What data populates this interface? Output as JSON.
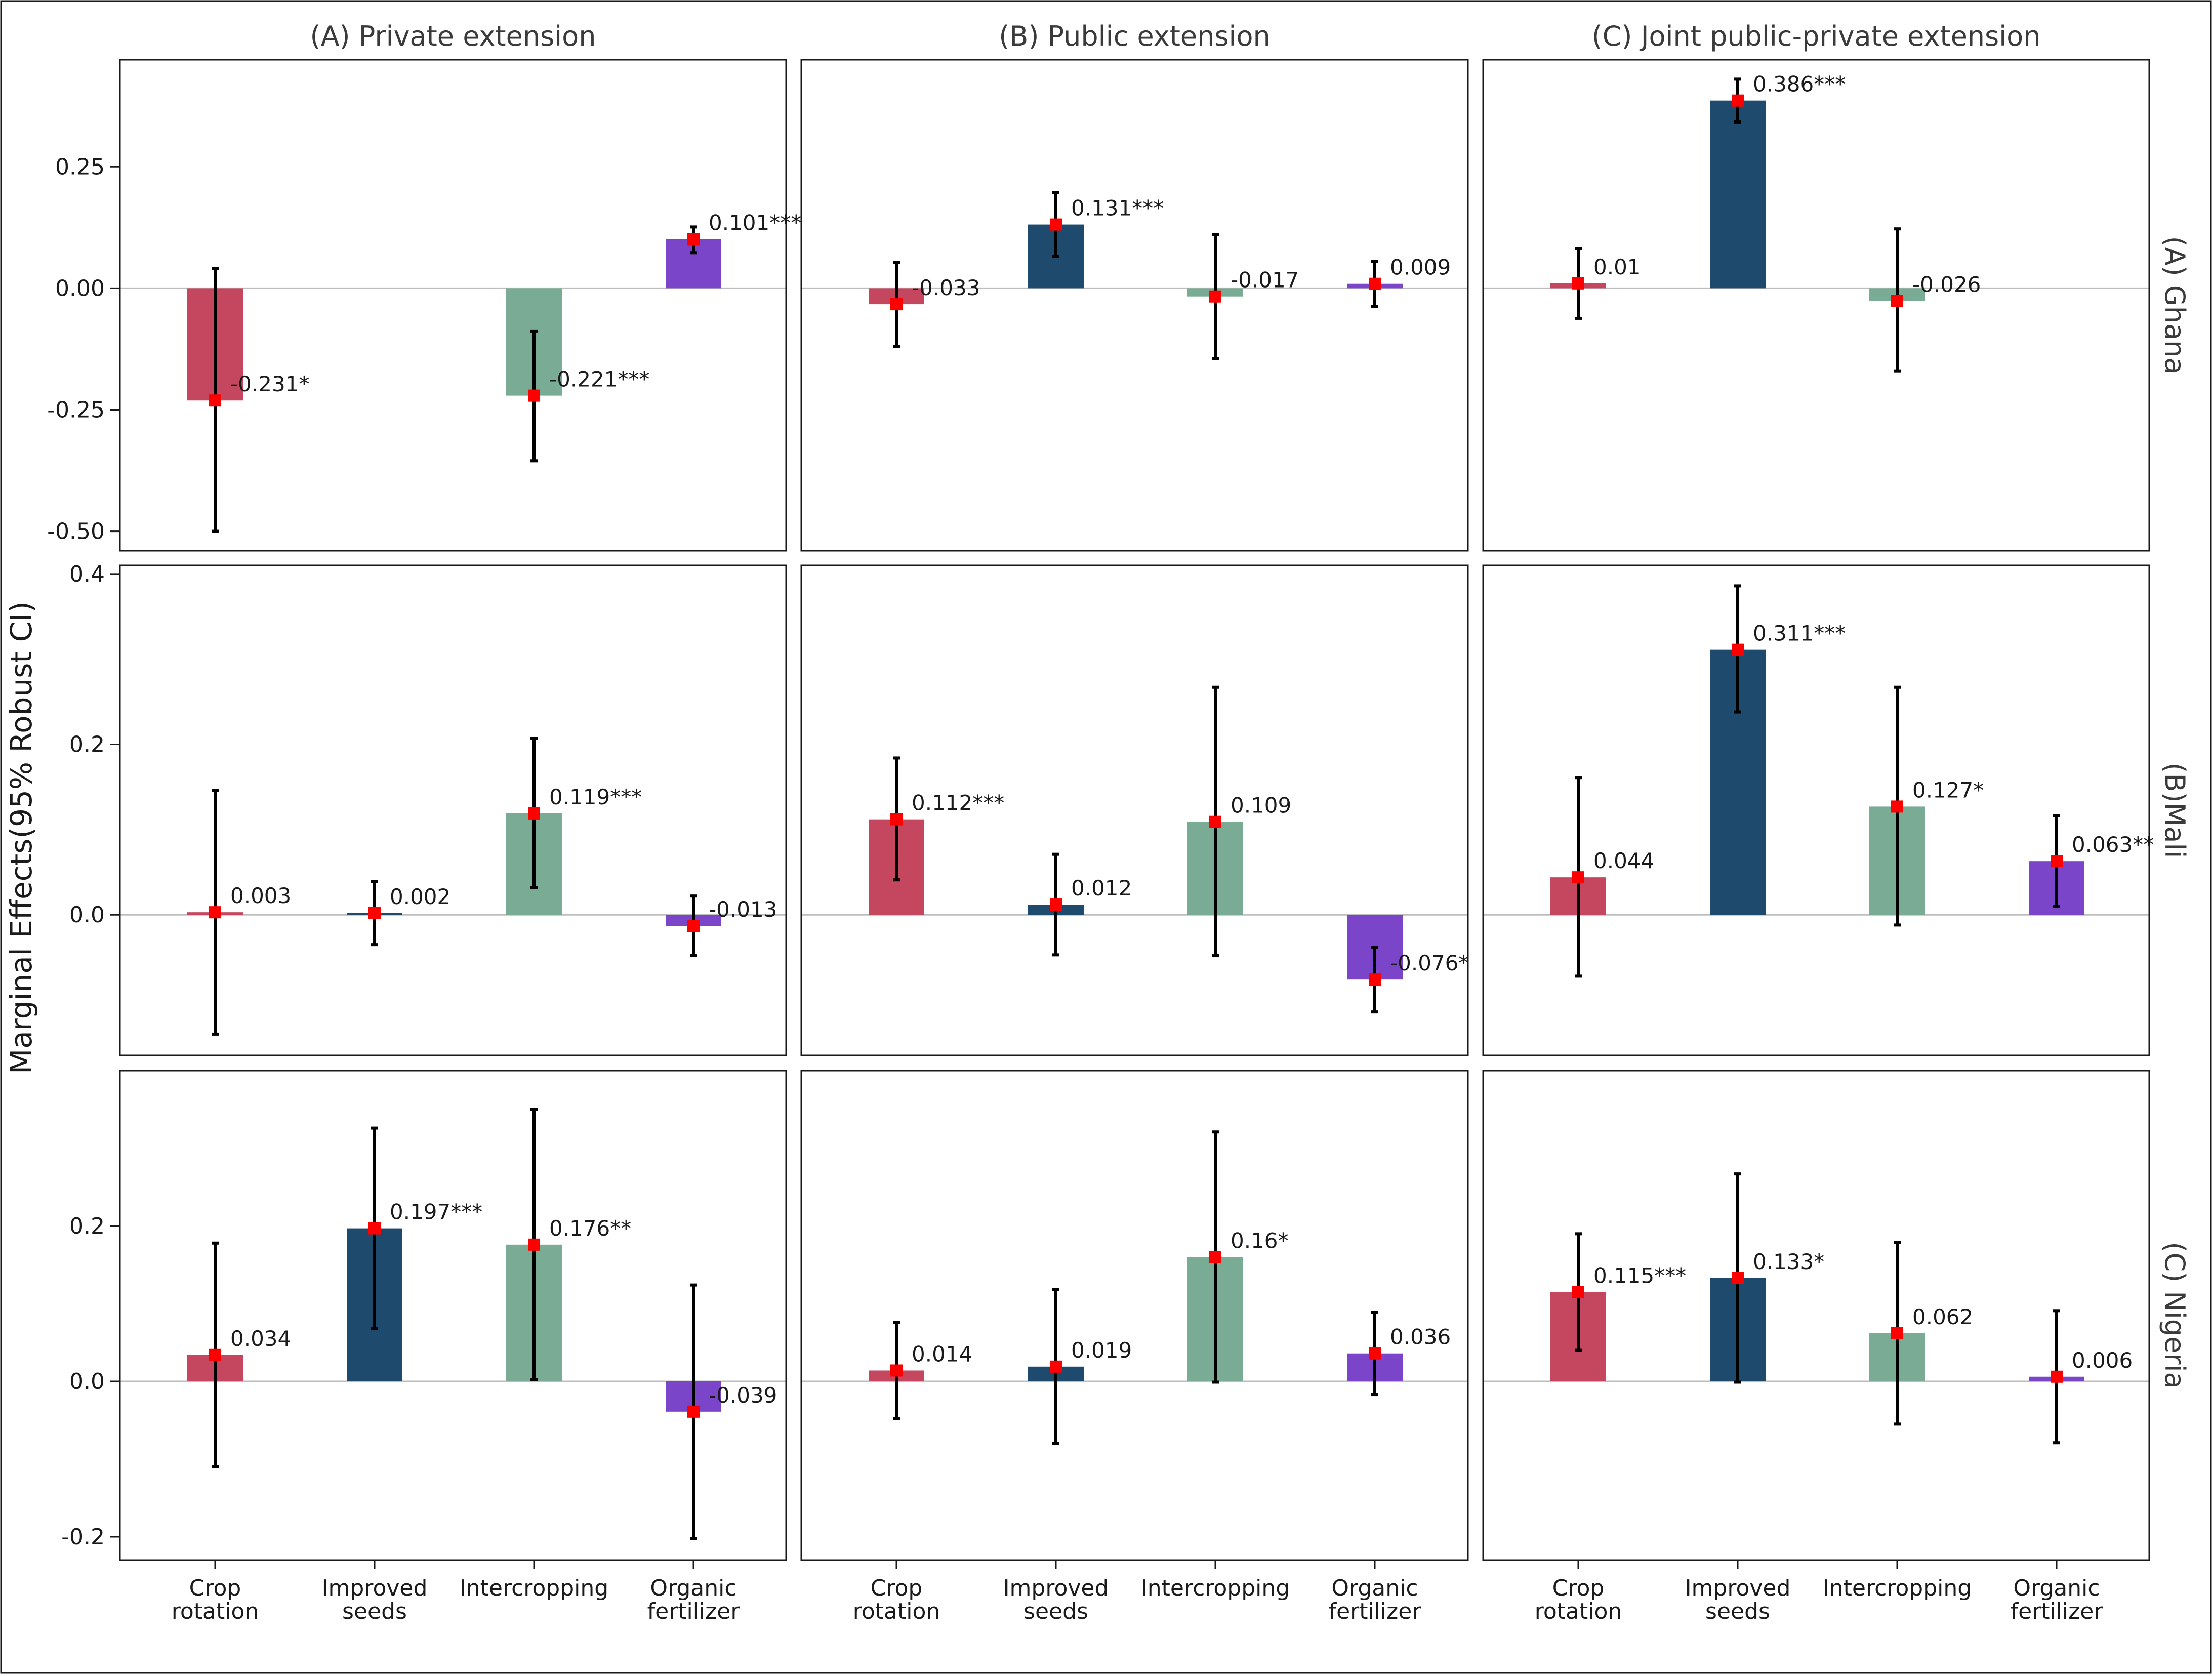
{
  "chart_data": {
    "type": "bar",
    "ylabel": "Marginal Effects(95% Robust CI)",
    "columns": [
      "(A) Private extension",
      "(B) Public extension",
      "(C) Joint public-private extension"
    ],
    "rows": [
      {
        "title": "(A) Ghana",
        "ylim": [
          -0.54,
          0.47
        ],
        "ticks": [
          0.25,
          0.0,
          -0.25,
          -0.5
        ],
        "tick_labels": [
          "0.25",
          "0.00",
          "-0.25",
          "-0.50"
        ]
      },
      {
        "title": "(B)Mali",
        "ylim": [
          -0.165,
          0.41
        ],
        "ticks": [
          0.4,
          0.2,
          0.0
        ],
        "tick_labels": [
          "0.4",
          "0.2",
          "0.0"
        ]
      },
      {
        "title": "(C) Nigeria",
        "ylim": [
          -0.23,
          0.4
        ],
        "ticks": [
          0.2,
          0.0,
          -0.2
        ],
        "tick_labels": [
          "0.2",
          "0.0",
          "-0.2"
        ]
      }
    ],
    "categories": [
      [
        "Crop",
        "rotation"
      ],
      [
        "Improved",
        "seeds"
      ],
      [
        "Intercropping"
      ],
      [
        "Organic",
        "fertilizer"
      ]
    ],
    "colors": [
      "#c4475f",
      "#1e4a6e",
      "#7aab94",
      "#7b45c9"
    ],
    "point_color": "#ff0000",
    "panels": [
      [
        {
          "values": [
            -0.231,
            null,
            -0.221,
            0.101
          ],
          "lo": [
            -0.5,
            null,
            -0.355,
            0.073
          ],
          "hi": [
            0.04,
            null,
            -0.088,
            0.126
          ],
          "labels": [
            "-0.231*",
            "",
            "-0.221***",
            "0.101***"
          ]
        },
        {
          "values": [
            -0.033,
            0.131,
            -0.017,
            0.009
          ],
          "lo": [
            -0.12,
            0.065,
            -0.145,
            -0.038
          ],
          "hi": [
            0.053,
            0.197,
            0.11,
            0.055
          ],
          "labels": [
            "-0.033",
            "0.131***",
            "-0.017",
            "0.009"
          ]
        },
        {
          "values": [
            0.01,
            0.386,
            -0.026,
            null
          ],
          "lo": [
            -0.062,
            0.342,
            -0.17,
            null
          ],
          "hi": [
            0.082,
            0.43,
            0.122,
            null
          ],
          "labels": [
            "0.01",
            "0.386***",
            "-0.026",
            ""
          ]
        }
      ],
      [
        {
          "values": [
            0.003,
            0.002,
            0.119,
            -0.013
          ],
          "lo": [
            -0.14,
            -0.035,
            0.032,
            -0.048
          ],
          "hi": [
            0.146,
            0.039,
            0.207,
            0.022
          ],
          "labels": [
            "0.003",
            "0.002",
            "0.119***",
            "-0.013"
          ]
        },
        {
          "values": [
            0.112,
            0.012,
            0.109,
            -0.076
          ],
          "lo": [
            0.041,
            -0.047,
            -0.048,
            -0.114
          ],
          "hi": [
            0.184,
            0.071,
            0.267,
            -0.038
          ],
          "labels": [
            "0.112***",
            "0.012",
            "0.109",
            "-0.076*"
          ]
        },
        {
          "values": [
            0.044,
            0.311,
            0.127,
            0.063
          ],
          "lo": [
            -0.072,
            0.238,
            -0.012,
            0.01
          ],
          "hi": [
            0.161,
            0.386,
            0.267,
            0.116
          ],
          "labels": [
            "0.044",
            "0.311***",
            "0.127*",
            "0.063**"
          ]
        }
      ],
      [
        {
          "values": [
            0.034,
            0.197,
            0.176,
            -0.039
          ],
          "lo": [
            -0.11,
            0.068,
            0.002,
            -0.202
          ],
          "hi": [
            0.178,
            0.326,
            0.35,
            0.124
          ],
          "labels": [
            "0.034",
            "0.197***",
            "0.176**",
            "-0.039"
          ]
        },
        {
          "values": [
            0.014,
            0.019,
            0.16,
            0.036
          ],
          "lo": [
            -0.048,
            -0.08,
            -0.001,
            -0.017
          ],
          "hi": [
            0.076,
            0.118,
            0.321,
            0.089
          ],
          "labels": [
            "0.014",
            "0.019",
            "0.16*",
            "0.036"
          ]
        },
        {
          "values": [
            0.115,
            0.133,
            0.062,
            0.006
          ],
          "lo": [
            0.04,
            -0.001,
            -0.055,
            -0.079
          ],
          "hi": [
            0.19,
            0.267,
            0.179,
            0.091
          ],
          "labels": [
            "0.115***",
            "0.133*",
            "0.062",
            "0.006"
          ]
        }
      ]
    ]
  }
}
